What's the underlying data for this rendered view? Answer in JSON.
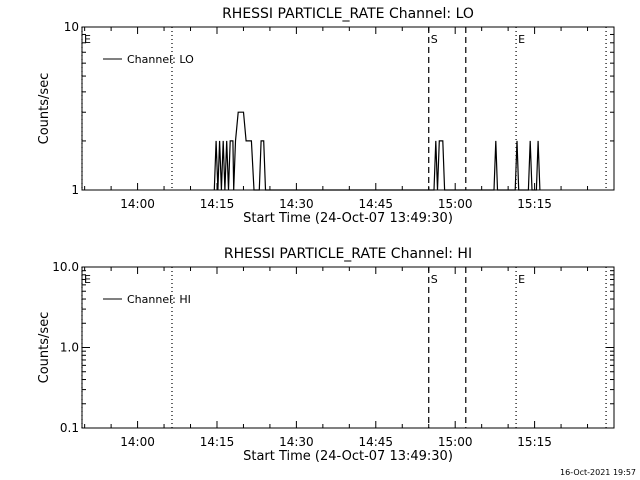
{
  "chart_data": [
    {
      "type": "line",
      "title": "RHESSI PARTICLE_RATE Channel: LO",
      "xlabel": "Start Time (24-Oct-07 13:49:30)",
      "ylabel": "Counts/sec",
      "y_scale": "log",
      "ylim": [
        1,
        10
      ],
      "y_ticks": [
        "1",
        "10"
      ],
      "x_range": [
        "13:49:30",
        "15:30:00"
      ],
      "x_ticks": [
        "14:00",
        "14:15",
        "14:30",
        "14:45",
        "15:00",
        "15:15"
      ],
      "legend": {
        "placement": "top-left",
        "entries": [
          "Channel: LO"
        ]
      },
      "series": [
        {
          "name": "Channel: LO",
          "points": [
            [
              "14:14:30",
              1
            ],
            [
              "14:14:50",
              2
            ],
            [
              "14:15:10",
              1
            ],
            [
              "14:15:30",
              2
            ],
            [
              "14:15:50",
              1
            ],
            [
              "14:16:10",
              2
            ],
            [
              "14:16:30",
              1
            ],
            [
              "14:16:50",
              2
            ],
            [
              "14:17:10",
              1
            ],
            [
              "14:17:30",
              2
            ],
            [
              "14:18:00",
              2
            ],
            [
              "14:18:10",
              1
            ],
            [
              "14:18:30",
              2
            ],
            [
              "14:19:00",
              3
            ],
            [
              "14:20:00",
              3
            ],
            [
              "14:20:30",
              2
            ],
            [
              "14:21:30",
              2
            ],
            [
              "14:22:00",
              1
            ],
            [
              "14:23:00",
              1
            ],
            [
              "14:23:20",
              2
            ],
            [
              "14:23:50",
              2
            ],
            [
              "14:24:10",
              1
            ],
            [
              "14:56:00",
              1
            ],
            [
              "14:56:20",
              2
            ],
            [
              "14:56:40",
              1
            ],
            [
              "14:57:00",
              2
            ],
            [
              "14:57:40",
              2
            ],
            [
              "14:58:00",
              1
            ],
            [
              "15:07:20",
              1
            ],
            [
              "15:07:40",
              2
            ],
            [
              "15:08:00",
              1
            ],
            [
              "15:11:20",
              1
            ],
            [
              "15:11:40",
              2
            ],
            [
              "15:12:00",
              1
            ],
            [
              "15:13:50",
              1
            ],
            [
              "15:14:10",
              2
            ],
            [
              "15:14:30",
              1
            ],
            [
              "15:15:20",
              1
            ],
            [
              "15:15:40",
              2
            ],
            [
              "15:16:00",
              1
            ]
          ]
        }
      ],
      "markers": [
        {
          "label": "E",
          "time": "13:49:30",
          "style": "dotted"
        },
        {
          "label": "",
          "time": "14:06:30",
          "style": "dotted"
        },
        {
          "label": "S",
          "time": "14:55:00",
          "style": "dashed"
        },
        {
          "label": "",
          "time": "15:02:00",
          "style": "dashed"
        },
        {
          "label": "E",
          "time": "15:11:30",
          "style": "dotted"
        },
        {
          "label": "",
          "time": "15:28:30",
          "style": "dotted"
        }
      ]
    },
    {
      "type": "line",
      "title": "RHESSI PARTICLE_RATE Channel: HI",
      "xlabel": "Start Time (24-Oct-07 13:49:30)",
      "ylabel": "Counts/sec",
      "y_scale": "log",
      "ylim": [
        0.1,
        10
      ],
      "y_ticks": [
        "0.1",
        "1.0",
        "10.0"
      ],
      "x_range": [
        "13:49:30",
        "15:30:00"
      ],
      "x_ticks": [
        "14:00",
        "14:15",
        "14:30",
        "14:45",
        "15:00",
        "15:15"
      ],
      "legend": {
        "placement": "top-left",
        "entries": [
          "Channel: HI"
        ]
      },
      "series": [
        {
          "name": "Channel: HI",
          "points": []
        }
      ],
      "markers": [
        {
          "label": "E",
          "time": "13:49:30",
          "style": "dotted"
        },
        {
          "label": "",
          "time": "14:06:30",
          "style": "dotted"
        },
        {
          "label": "S",
          "time": "14:55:00",
          "style": "dashed"
        },
        {
          "label": "",
          "time": "15:02:00",
          "style": "dashed"
        },
        {
          "label": "E",
          "time": "15:11:30",
          "style": "dotted"
        },
        {
          "label": "",
          "time": "15:28:30",
          "style": "dotted"
        }
      ]
    }
  ],
  "footer": {
    "timestamp": "16-Oct-2021 19:57"
  }
}
